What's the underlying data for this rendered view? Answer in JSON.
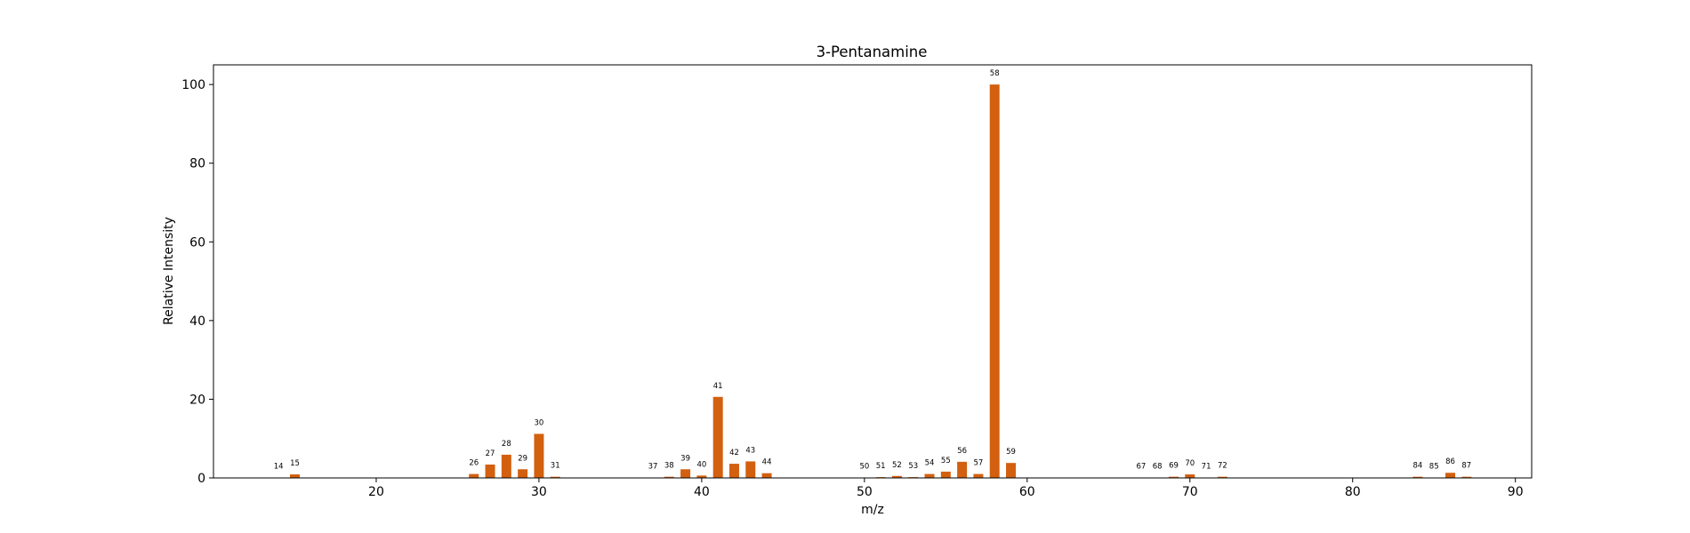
{
  "chart_data": {
    "type": "bar",
    "title": "3-Pentanamine",
    "xlabel": "m/z",
    "ylabel": "Relative Intensity",
    "xlim": [
      10,
      91
    ],
    "ylim": [
      0,
      105
    ],
    "xticks": [
      20,
      30,
      40,
      50,
      60,
      70,
      80,
      90
    ],
    "yticks": [
      0,
      20,
      40,
      60,
      80,
      100
    ],
    "bar_color": "#d2600f",
    "grid": false,
    "legend": false,
    "x": [
      14,
      15,
      26,
      27,
      28,
      29,
      30,
      31,
      37,
      38,
      39,
      40,
      41,
      42,
      43,
      44,
      50,
      51,
      52,
      53,
      54,
      55,
      56,
      57,
      58,
      59,
      67,
      68,
      69,
      70,
      71,
      72,
      84,
      85,
      86,
      87
    ],
    "values": [
      0.1,
      0.9,
      1.0,
      3.4,
      5.9,
      2.2,
      11.2,
      0.3,
      0.1,
      0.3,
      2.2,
      0.6,
      20.6,
      3.6,
      4.2,
      1.2,
      0.1,
      0.2,
      0.5,
      0.2,
      1.0,
      1.6,
      4.1,
      1.0,
      100,
      3.8,
      0.1,
      0.1,
      0.3,
      0.9,
      0.1,
      0.3,
      0.3,
      0.1,
      1.3,
      0.3
    ]
  }
}
